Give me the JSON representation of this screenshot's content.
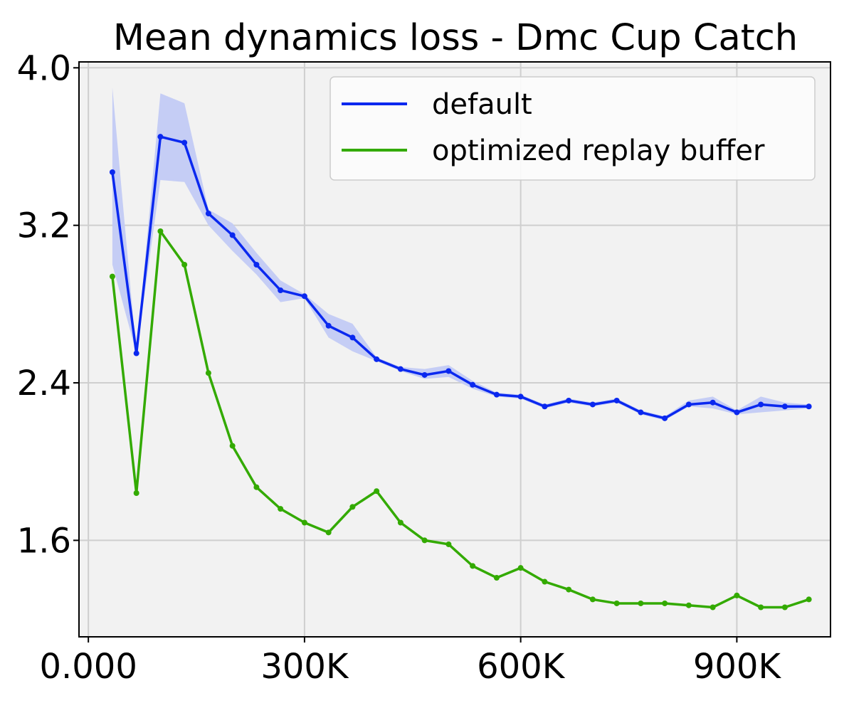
{
  "chart_data": {
    "type": "line",
    "title": "Mean dynamics loss - Dmc Cup Catch",
    "xlabel": "",
    "ylabel": "",
    "xlim": [
      -13000,
      1030000
    ],
    "ylim": [
      1.11,
      4.03
    ],
    "x_ticks": [
      0,
      300000,
      600000,
      900000
    ],
    "x_tick_labels": [
      "0.000",
      "300K",
      "600K",
      "900K"
    ],
    "y_ticks": [
      1.6,
      2.4,
      3.2,
      4.0
    ],
    "y_tick_labels": [
      "1.6",
      "2.4",
      "3.2",
      "4.0"
    ],
    "grid": true,
    "legend_position": "top-right",
    "x": [
      33333,
      66667,
      100000,
      133333,
      166667,
      200000,
      233333,
      266667,
      300000,
      333333,
      366667,
      400000,
      433333,
      466667,
      500000,
      533333,
      566667,
      600000,
      633333,
      666667,
      700000,
      733333,
      766667,
      800000,
      833333,
      866667,
      900000,
      933333,
      966667,
      1000000
    ],
    "series": [
      {
        "name": "default",
        "color": "#0a28ef",
        "band_color": "#c2caf4",
        "values": [
          3.47,
          2.55,
          3.65,
          3.62,
          3.26,
          3.15,
          3.0,
          2.87,
          2.84,
          2.69,
          2.63,
          2.52,
          2.47,
          2.44,
          2.46,
          2.39,
          2.34,
          2.33,
          2.28,
          2.31,
          2.29,
          2.31,
          2.25,
          2.22,
          2.29,
          2.3,
          2.25,
          2.29,
          2.28,
          2.28
        ],
        "band_upper": [
          3.9,
          2.55,
          3.87,
          3.82,
          3.28,
          3.21,
          3.06,
          2.92,
          2.85,
          2.75,
          2.7,
          2.53,
          2.48,
          2.47,
          2.49,
          2.41,
          2.35,
          2.34,
          2.29,
          2.32,
          2.3,
          2.32,
          2.26,
          2.23,
          2.31,
          2.33,
          2.26,
          2.33,
          2.3,
          2.29
        ],
        "band_lower": [
          3.0,
          2.55,
          3.43,
          3.42,
          3.2,
          3.07,
          2.95,
          2.81,
          2.83,
          2.63,
          2.56,
          2.51,
          2.46,
          2.42,
          2.43,
          2.37,
          2.33,
          2.32,
          2.27,
          2.3,
          2.28,
          2.3,
          2.24,
          2.21,
          2.28,
          2.27,
          2.24,
          2.25,
          2.26,
          2.27
        ]
      },
      {
        "name": "optimized replay buffer",
        "color": "#33aa00",
        "values": [
          2.94,
          1.84,
          3.17,
          3.0,
          2.45,
          2.08,
          1.87,
          1.76,
          1.69,
          1.64,
          1.77,
          1.85,
          1.69,
          1.6,
          1.58,
          1.47,
          1.41,
          1.46,
          1.39,
          1.35,
          1.3,
          1.28,
          1.28,
          1.28,
          1.27,
          1.26,
          1.32,
          1.26,
          1.26,
          1.3
        ]
      }
    ]
  }
}
